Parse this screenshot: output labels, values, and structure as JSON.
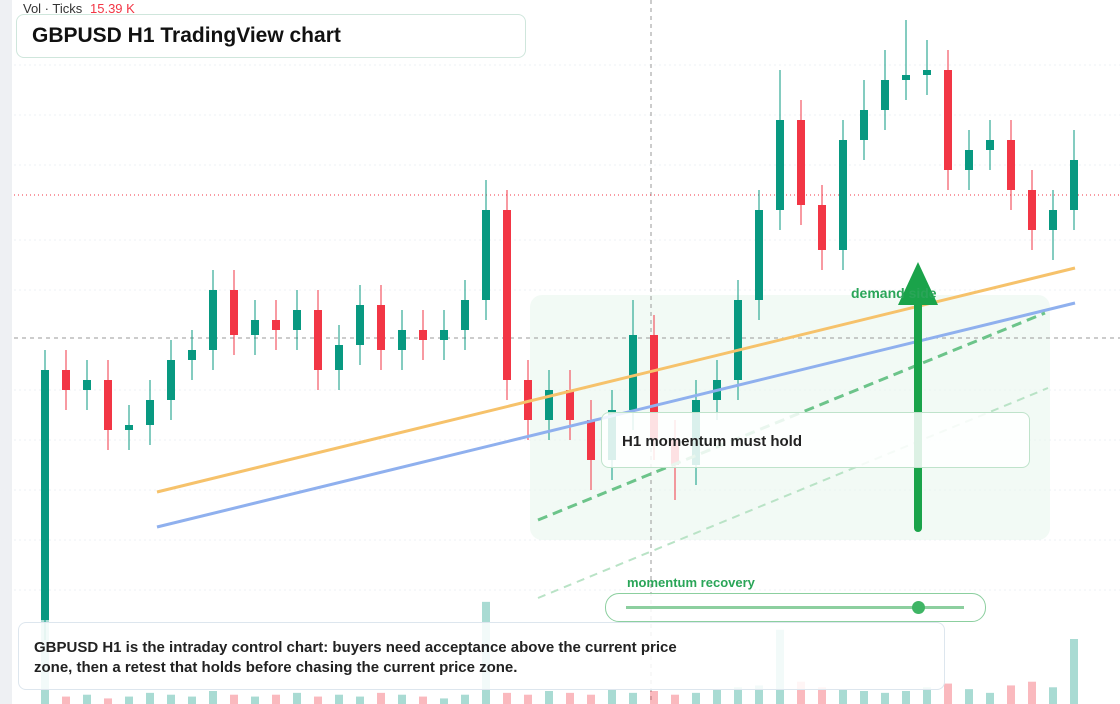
{
  "header": {
    "vol_label": "Vol · Ticks",
    "vol_value": "15.39 K",
    "title": "GBPUSD H1 TradingView chart"
  },
  "annotations": {
    "zone": "demand side",
    "box": "H1 momentum must hold",
    "slider": "momentum recovery"
  },
  "caption": "GBPUSD H1 is the intraday control chart: buyers need acceptance above the current price zone, then a retest that holds before chasing the current price zone.",
  "chart_data": {
    "type": "candlestick",
    "ylim": [
      1.26592,
      1.28
    ],
    "vol_ylim": [
      0,
      70
    ],
    "up_color": "#089981",
    "down_color": "#f23645",
    "open": [
      1.2676,
      1.2726,
      1.2722,
      1.2724,
      1.2714,
      1.2715,
      1.272,
      1.2728,
      1.273,
      1.2742,
      1.2733,
      1.2736,
      1.2734,
      1.2738,
      1.2726,
      1.2731,
      1.2739,
      1.273,
      1.2734,
      1.2732,
      1.2734,
      1.274,
      1.2758,
      1.2724,
      1.2716,
      1.2722,
      1.2716,
      1.2708,
      1.2718,
      1.2733,
      1.2712,
      1.2707,
      1.272,
      1.2724,
      1.274,
      1.2758,
      1.2776,
      1.2759,
      1.275,
      1.2772,
      1.2778,
      1.2784,
      1.2785,
      1.2786,
      1.2766,
      1.277,
      1.2772,
      1.2762,
      1.2754,
      1.2758
    ],
    "high": [
      1.273,
      1.273,
      1.2728,
      1.2728,
      1.2719,
      1.2724,
      1.2732,
      1.2734,
      1.2746,
      1.2746,
      1.274,
      1.274,
      1.2742,
      1.2742,
      1.2735,
      1.2743,
      1.2743,
      1.2738,
      1.2738,
      1.2738,
      1.2744,
      1.2764,
      1.2762,
      1.2728,
      1.2726,
      1.2726,
      1.272,
      1.2722,
      1.274,
      1.2737,
      1.2716,
      1.2724,
      1.2728,
      1.2744,
      1.2762,
      1.2786,
      1.278,
      1.2763,
      1.2776,
      1.2784,
      1.279,
      1.2796,
      1.2792,
      1.279,
      1.2774,
      1.2776,
      1.2776,
      1.2766,
      1.2762,
      1.2774
    ],
    "low": [
      1.2672,
      1.2718,
      1.2718,
      1.271,
      1.271,
      1.2711,
      1.2716,
      1.2724,
      1.2726,
      1.2729,
      1.2729,
      1.273,
      1.273,
      1.2722,
      1.2722,
      1.2727,
      1.2726,
      1.2726,
      1.2728,
      1.2728,
      1.273,
      1.2736,
      1.272,
      1.2712,
      1.2712,
      1.2712,
      1.2702,
      1.2704,
      1.2714,
      1.2708,
      1.27,
      1.2703,
      1.2716,
      1.272,
      1.2736,
      1.2754,
      1.2755,
      1.2746,
      1.2746,
      1.2768,
      1.2774,
      1.278,
      1.2781,
      1.2762,
      1.2762,
      1.2766,
      1.2758,
      1.275,
      1.2748,
      1.2754
    ],
    "close": [
      1.2726,
      1.2722,
      1.2724,
      1.2714,
      1.2715,
      1.272,
      1.2728,
      1.273,
      1.2742,
      1.2733,
      1.2736,
      1.2734,
      1.2738,
      1.2726,
      1.2731,
      1.2739,
      1.273,
      1.2734,
      1.2732,
      1.2734,
      1.274,
      1.2758,
      1.2724,
      1.2716,
      1.2722,
      1.2716,
      1.2708,
      1.2718,
      1.2733,
      1.2712,
      1.2707,
      1.272,
      1.2724,
      1.274,
      1.2758,
      1.2776,
      1.2759,
      1.275,
      1.2772,
      1.2778,
      1.2784,
      1.2785,
      1.2786,
      1.2766,
      1.277,
      1.2772,
      1.2762,
      1.2754,
      1.2758,
      1.2768
    ],
    "volume": [
      60,
      4,
      5,
      3,
      4,
      6,
      5,
      4,
      7,
      5,
      4,
      5,
      6,
      4,
      5,
      4,
      6,
      5,
      4,
      3,
      5,
      55,
      6,
      5,
      7,
      6,
      5,
      8,
      6,
      7,
      5,
      6,
      8,
      9,
      10,
      40,
      12,
      9,
      8,
      7,
      6,
      7,
      9,
      11,
      8,
      6,
      10,
      12,
      9,
      35
    ]
  }
}
